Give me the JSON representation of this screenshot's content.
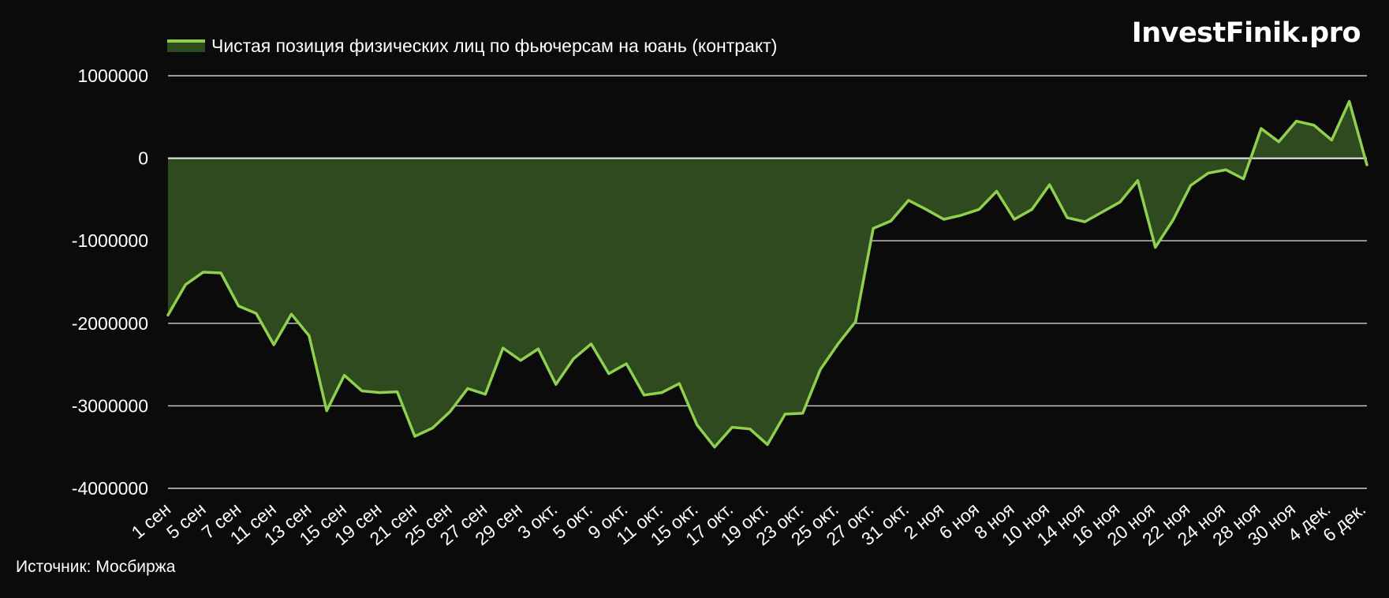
{
  "brand": "InvestFinik.pro",
  "source_note": "Источник: Мосбиржа",
  "colors": {
    "background": "#0b0b0b",
    "line": "#8fd14f",
    "fill": "#2f4a1e",
    "grid": "#cfcfcf",
    "text": "#ffffff"
  },
  "chart_data": {
    "type": "area",
    "legend_position": "top-left",
    "grid": true,
    "ylim": [
      -4000000,
      1000000
    ],
    "yticks": [
      1000000,
      0,
      -1000000,
      -2000000,
      -3000000,
      -4000000
    ],
    "ytick_labels": [
      "1000000",
      "0",
      "-1000000",
      "-2000000",
      "-3000000",
      "-4000000"
    ],
    "xtick_labels": [
      "1 сен",
      "5 сен",
      "7 сен",
      "11 сен",
      "13 сен",
      "15 сен",
      "19 сен",
      "21 сен",
      "25 сен",
      "27 сен",
      "29 сен",
      "3 окт.",
      "5 окт.",
      "9 окт.",
      "11 окт.",
      "15 окт.",
      "17 окт.",
      "19 окт.",
      "23 окт.",
      "25 окт.",
      "27 окт.",
      "31 окт.",
      "2 ноя",
      "6 ноя",
      "8 ноя",
      "10 ноя",
      "14 ноя",
      "16 ноя",
      "20 ноя",
      "22 ноя",
      "24 ноя",
      "28 ноя",
      "30 ноя",
      "4 дек.",
      "6 дек."
    ],
    "series": [
      {
        "name": "Чистая позиция физических лиц по фьючерсам на юань (контракт)",
        "values": [
          -1900000,
          -1530000,
          -1380000,
          -1390000,
          -1790000,
          -1880000,
          -2260000,
          -1890000,
          -2150000,
          -3060000,
          -2630000,
          -2820000,
          -2840000,
          -2830000,
          -3370000,
          -3270000,
          -3070000,
          -2790000,
          -2860000,
          -2300000,
          -2450000,
          -2310000,
          -2740000,
          -2430000,
          -2250000,
          -2610000,
          -2490000,
          -2870000,
          -2840000,
          -2730000,
          -3230000,
          -3500000,
          -3260000,
          -3280000,
          -3470000,
          -3100000,
          -3090000,
          -2560000,
          -2250000,
          -1980000,
          -850000,
          -760000,
          -510000,
          -620000,
          -740000,
          -690000,
          -620000,
          -400000,
          -740000,
          -620000,
          -320000,
          -720000,
          -770000,
          -650000,
          -530000,
          -270000,
          -1080000,
          -750000,
          -330000,
          -180000,
          -140000,
          -250000,
          360000,
          200000,
          450000,
          400000,
          220000,
          690000,
          -80000
        ]
      }
    ]
  }
}
